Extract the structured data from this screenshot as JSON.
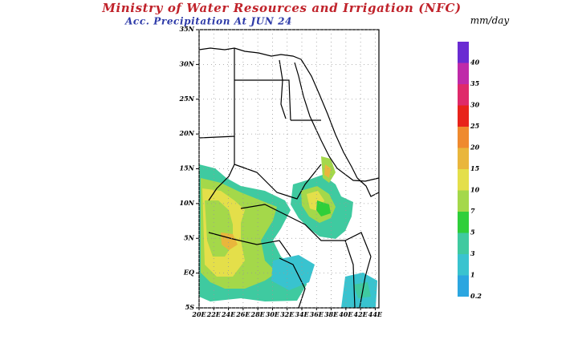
{
  "chart_data": {
    "type": "map",
    "title": "Ministry of Water Resources and Irrigation (NFC)",
    "subtitle": "Acc. Precipitation  At JUN 24",
    "units": "mm/day",
    "xlim": [
      20,
      44.5
    ],
    "ylim": [
      -5,
      35
    ],
    "xticks": [
      {
        "value": 20,
        "label": "20E"
      },
      {
        "value": 22,
        "label": "22E"
      },
      {
        "value": 24,
        "label": "24E"
      },
      {
        "value": 26,
        "label": "26E"
      },
      {
        "value": 28,
        "label": "28E"
      },
      {
        "value": 30,
        "label": "30E"
      },
      {
        "value": 32,
        "label": "32E"
      },
      {
        "value": 34,
        "label": "34E"
      },
      {
        "value": 36,
        "label": "36E"
      },
      {
        "value": 38,
        "label": "38E"
      },
      {
        "value": 40,
        "label": "40E"
      },
      {
        "value": 42,
        "label": "42E"
      },
      {
        "value": 44,
        "label": "44E"
      }
    ],
    "yticks": [
      {
        "value": 35,
        "label": "35N"
      },
      {
        "value": 30,
        "label": "30N"
      },
      {
        "value": 25,
        "label": "25N"
      },
      {
        "value": 20,
        "label": "20N"
      },
      {
        "value": 15,
        "label": "15N"
      },
      {
        "value": 10,
        "label": "10N"
      },
      {
        "value": 5,
        "label": "5N"
      },
      {
        "value": 0,
        "label": "EQ"
      },
      {
        "value": -5,
        "label": "5S"
      }
    ],
    "grid": true,
    "colorbar": {
      "levels": [
        0.2,
        1,
        3,
        5,
        7,
        10,
        15,
        20,
        25,
        30,
        35,
        40
      ],
      "colors": [
        "#2ba6e0",
        "#39c3cf",
        "#3fcaa0",
        "#2fcf3a",
        "#a4d84a",
        "#e4df4a",
        "#e9b63c",
        "#ef8a2e",
        "#e8231b",
        "#df2a6a",
        "#bf2aa9",
        "#6a2bd2"
      ]
    }
  }
}
